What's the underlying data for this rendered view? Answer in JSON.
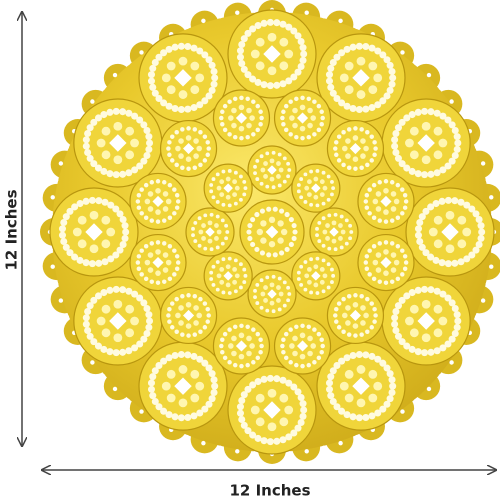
{
  "dimensions": {
    "height_label": "12 Inches",
    "width_label": "12 Inches"
  }
}
